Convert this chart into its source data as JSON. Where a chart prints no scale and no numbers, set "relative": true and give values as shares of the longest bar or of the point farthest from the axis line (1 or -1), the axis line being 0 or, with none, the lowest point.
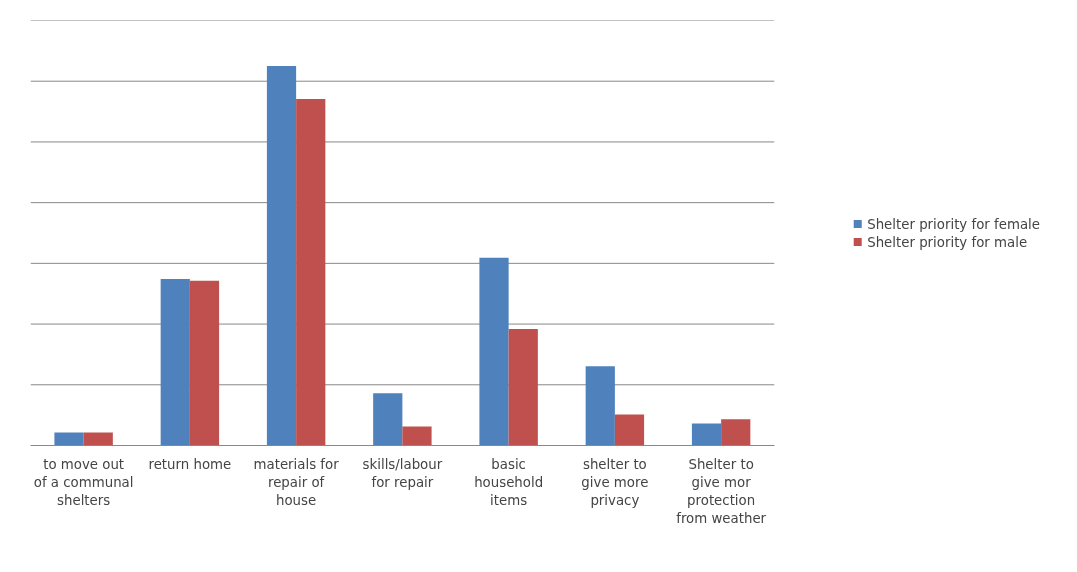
{
  "chart_data": {
    "type": "bar",
    "relative": true,
    "grid": "y",
    "legend": "right",
    "categories": [
      "to move out of a communal shelters",
      "return home",
      "materials for repair of house",
      "skills/labour for repair",
      "basic household items",
      "shelter to give more privacy",
      "Shelter to give mor protection from weather"
    ],
    "series": [
      {
        "name": "Shelter priority for female",
        "color": "#4f81bd",
        "values": [
          0.034,
          0.439,
          1,
          0.138,
          0.495,
          0.209,
          0.058
        ]
      },
      {
        "name": "Shelter priority for male",
        "color": "#c0504d",
        "values": [
          0.034,
          0.434,
          0.913,
          0.05,
          0.307,
          0.082,
          0.069
        ]
      }
    ]
  }
}
